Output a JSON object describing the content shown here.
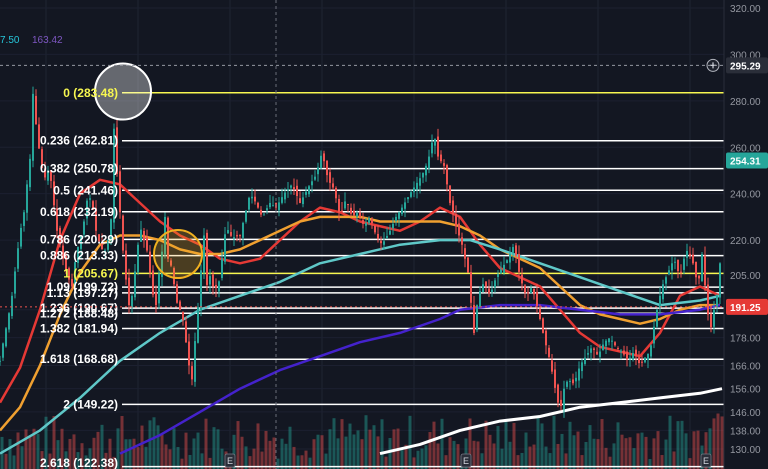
{
  "chart_data": {
    "type": "candlestick",
    "ylim": [
      128,
      324
    ],
    "x_count": 180,
    "yaxis_ticks": [
      "320.00",
      "300.00",
      "280.00",
      "260.00",
      "240.00",
      "220.00",
      "205.00",
      "190.00",
      "178.00",
      "166.00",
      "156.00",
      "146.00",
      "138.00",
      "130.00"
    ],
    "yaxis_tick_values": [
      320,
      300,
      280,
      260,
      240,
      220,
      205,
      190,
      178,
      166,
      156,
      146,
      138,
      130
    ],
    "price_badges": [
      {
        "label": "295.29",
        "value": 295.29,
        "color": "#2a2e39"
      },
      {
        "label": "254.31",
        "value": 254.31,
        "color": "#26a69a"
      },
      {
        "label": "191.25",
        "value": 191.25,
        "color": "#e53935"
      }
    ],
    "top_left_values": [
      {
        "text": "7.50",
        "color": "#26c6da"
      },
      {
        "text": "163.42",
        "color": "#7e57c2"
      }
    ],
    "fib_levels": [
      {
        "ratio": "0",
        "value": 283.48,
        "text": "0 (283.48)",
        "color": "#f7f750"
      },
      {
        "ratio": "0.236",
        "value": 262.81,
        "text": "0.236 (262.81)",
        "color": "#ffffff"
      },
      {
        "ratio": "0.382",
        "value": 250.78,
        "text": "0.382 (250.78)",
        "color": "#ffffff"
      },
      {
        "ratio": "0.5",
        "value": 241.46,
        "text": "0.5 (241.46)",
        "color": "#ffffff"
      },
      {
        "ratio": "0.618",
        "value": 232.19,
        "text": "0.618 (232.19)",
        "color": "#ffffff"
      },
      {
        "ratio": "0.786",
        "value": 220.29,
        "text": "0.786 (220.29)",
        "color": "#ffffff"
      },
      {
        "ratio": "0.886",
        "value": 213.33,
        "text": "0.886 (213.33)",
        "color": "#ffffff"
      },
      {
        "ratio": "1",
        "value": 205.67,
        "text": "1 (205.67)",
        "color": "#f7f750"
      },
      {
        "ratio": "1.09",
        "value": 199.72,
        "text": "1.09 (199.72)",
        "color": "#ffffff"
      },
      {
        "ratio": "1.13",
        "value": 197.27,
        "text": "1.13 (197.27)",
        "color": "#ffffff"
      },
      {
        "ratio": "1.236",
        "value": 190.67,
        "text": "1.236 (190.67)",
        "color": "#ffffff"
      },
      {
        "ratio": "1.272",
        "value": 188.48,
        "text": "1.272 (188.48)",
        "color": "#ffffff"
      },
      {
        "ratio": "1.382",
        "value": 181.94,
        "text": "1.382 (181.94)",
        "color": "#ffffff"
      },
      {
        "ratio": "1.618",
        "value": 168.68,
        "text": "1.618 (168.68)",
        "color": "#ffffff"
      },
      {
        "ratio": "2",
        "value": 149.22,
        "text": "2 (149.22)",
        "color": "#ffffff"
      },
      {
        "ratio": "2.618",
        "value": 122.38,
        "text": "2.618 (122.38)",
        "color": "#ffffff"
      }
    ],
    "close_path": [
      [
        0,
        168
      ],
      [
        4,
        178
      ],
      [
        8,
        186
      ],
      [
        12,
        196
      ],
      [
        16,
        210
      ],
      [
        20,
        223
      ],
      [
        24,
        232
      ],
      [
        28,
        248
      ],
      [
        32,
        262
      ],
      [
        33,
        283
      ],
      [
        36,
        270
      ],
      [
        40,
        256
      ],
      [
        44,
        246
      ],
      [
        48,
        250
      ],
      [
        52,
        244
      ],
      [
        56,
        226
      ],
      [
        60,
        218
      ],
      [
        64,
        210
      ],
      [
        68,
        204
      ],
      [
        72,
        200
      ],
      [
        76,
        214
      ],
      [
        80,
        220
      ],
      [
        84,
        228
      ],
      [
        88,
        240
      ],
      [
        92,
        236
      ],
      [
        96,
        224
      ],
      [
        100,
        218
      ],
      [
        104,
        214
      ],
      [
        108,
        220
      ],
      [
        112,
        232
      ],
      [
        114,
        268
      ],
      [
        116,
        254
      ],
      [
        120,
        232
      ],
      [
        124,
        210
      ],
      [
        128,
        196
      ],
      [
        130,
        188
      ],
      [
        132,
        196
      ],
      [
        136,
        210
      ],
      [
        140,
        226
      ],
      [
        144,
        220
      ],
      [
        148,
        214
      ],
      [
        152,
        198
      ],
      [
        156,
        192
      ],
      [
        160,
        210
      ],
      [
        164,
        220
      ],
      [
        166,
        240
      ],
      [
        168,
        212
      ],
      [
        172,
        208
      ],
      [
        176,
        194
      ],
      [
        180,
        190
      ],
      [
        184,
        184
      ],
      [
        188,
        168
      ],
      [
        192,
        160
      ],
      [
        196,
        182
      ],
      [
        200,
        200
      ],
      [
        202,
        214
      ],
      [
        204,
        222
      ],
      [
        206,
        198
      ],
      [
        209,
        206
      ],
      [
        213,
        200
      ],
      [
        218,
        199
      ],
      [
        222,
        212
      ],
      [
        226,
        226
      ],
      [
        232,
        221
      ],
      [
        240,
        222
      ],
      [
        250,
        240
      ],
      [
        256,
        236
      ],
      [
        262,
        230
      ],
      [
        270,
        236
      ],
      [
        276,
        234
      ],
      [
        284,
        240
      ],
      [
        292,
        244
      ],
      [
        300,
        236
      ],
      [
        310,
        244
      ],
      [
        316,
        248
      ],
      [
        322,
        258
      ],
      [
        328,
        246
      ],
      [
        334,
        242
      ],
      [
        340,
        230
      ],
      [
        346,
        238
      ],
      [
        352,
        230
      ],
      [
        358,
        232
      ],
      [
        364,
        226
      ],
      [
        370,
        230
      ],
      [
        376,
        222
      ],
      [
        382,
        218
      ],
      [
        390,
        224
      ],
      [
        396,
        230
      ],
      [
        402,
        234
      ],
      [
        410,
        240
      ],
      [
        416,
        244
      ],
      [
        422,
        248
      ],
      [
        428,
        254
      ],
      [
        434,
        266
      ],
      [
        438,
        256
      ],
      [
        444,
        252
      ],
      [
        450,
        236
      ],
      [
        456,
        226
      ],
      [
        462,
        218
      ],
      [
        468,
        206
      ],
      [
        474,
        180
      ],
      [
        478,
        196
      ],
      [
        484,
        202
      ],
      [
        490,
        196
      ],
      [
        496,
        204
      ],
      [
        502,
        208
      ],
      [
        508,
        212
      ],
      [
        514,
        218
      ],
      [
        520,
        204
      ],
      [
        526,
        196
      ],
      [
        532,
        200
      ],
      [
        538,
        190
      ],
      [
        544,
        178
      ],
      [
        550,
        168
      ],
      [
        556,
        154
      ],
      [
        560,
        146
      ],
      [
        564,
        156
      ],
      [
        568,
        160
      ],
      [
        574,
        158
      ],
      [
        580,
        166
      ],
      [
        586,
        170
      ],
      [
        592,
        174
      ],
      [
        598,
        170
      ],
      [
        604,
        176
      ],
      [
        610,
        178
      ],
      [
        616,
        174
      ],
      [
        622,
        172
      ],
      [
        628,
        168
      ],
      [
        634,
        172
      ],
      [
        640,
        166
      ],
      [
        646,
        170
      ],
      [
        650,
        172
      ],
      [
        656,
        188
      ],
      [
        662,
        200
      ],
      [
        668,
        206
      ],
      [
        674,
        212
      ],
      [
        680,
        204
      ],
      [
        686,
        216
      ],
      [
        692,
        212
      ],
      [
        698,
        200
      ],
      [
        702,
        214
      ],
      [
        706,
        196
      ],
      [
        710,
        180
      ],
      [
        714,
        190
      ],
      [
        718,
        198
      ],
      [
        720,
        210
      ],
      [
        722,
        254
      ]
    ],
    "moving_averages": [
      {
        "color": "#e53935",
        "width": 2.5,
        "points": [
          [
            0,
            150
          ],
          [
            20,
            165
          ],
          [
            40,
            190
          ],
          [
            60,
            220
          ],
          [
            80,
            240
          ],
          [
            100,
            246
          ],
          [
            120,
            244
          ],
          [
            140,
            236
          ],
          [
            160,
            228
          ],
          [
            180,
            222
          ],
          [
            200,
            218
          ],
          [
            220,
            212
          ],
          [
            240,
            210
          ],
          [
            260,
            212
          ],
          [
            280,
            220
          ],
          [
            300,
            228
          ],
          [
            320,
            234
          ],
          [
            340,
            232
          ],
          [
            360,
            228
          ],
          [
            380,
            226
          ],
          [
            400,
            224
          ],
          [
            420,
            228
          ],
          [
            440,
            234
          ],
          [
            460,
            230
          ],
          [
            480,
            218
          ],
          [
            500,
            208
          ],
          [
            520,
            204
          ],
          [
            540,
            200
          ],
          [
            560,
            190
          ],
          [
            580,
            180
          ],
          [
            600,
            174
          ],
          [
            620,
            172
          ],
          [
            640,
            170
          ],
          [
            660,
            180
          ],
          [
            680,
            196
          ],
          [
            700,
            200
          ],
          [
            720,
            196
          ]
        ]
      },
      {
        "color": "#f0a030",
        "width": 2.5,
        "points": [
          [
            0,
            138
          ],
          [
            20,
            148
          ],
          [
            40,
            166
          ],
          [
            60,
            188
          ],
          [
            80,
            206
          ],
          [
            100,
            218
          ],
          [
            120,
            222
          ],
          [
            140,
            222
          ],
          [
            160,
            220
          ],
          [
            180,
            216
          ],
          [
            200,
            214
          ],
          [
            220,
            214
          ],
          [
            240,
            216
          ],
          [
            260,
            220
          ],
          [
            280,
            224
          ],
          [
            300,
            228
          ],
          [
            320,
            230
          ],
          [
            340,
            230
          ],
          [
            360,
            230
          ],
          [
            380,
            228
          ],
          [
            400,
            228
          ],
          [
            420,
            228
          ],
          [
            440,
            228
          ],
          [
            460,
            226
          ],
          [
            480,
            222
          ],
          [
            500,
            216
          ],
          [
            520,
            212
          ],
          [
            540,
            208
          ],
          [
            560,
            200
          ],
          [
            580,
            192
          ],
          [
            600,
            188
          ],
          [
            620,
            186
          ],
          [
            640,
            184
          ],
          [
            660,
            186
          ],
          [
            680,
            190
          ],
          [
            700,
            192
          ],
          [
            720,
            192
          ]
        ]
      },
      {
        "color": "#5fc8c8",
        "width": 2.5,
        "points": [
          [
            0,
            128
          ],
          [
            40,
            138
          ],
          [
            80,
            152
          ],
          [
            120,
            168
          ],
          [
            160,
            180
          ],
          [
            200,
            190
          ],
          [
            240,
            196
          ],
          [
            280,
            202
          ],
          [
            320,
            210
          ],
          [
            360,
            214
          ],
          [
            400,
            218
          ],
          [
            440,
            220
          ],
          [
            470,
            220
          ],
          [
            500,
            216
          ],
          [
            540,
            210
          ],
          [
            580,
            204
          ],
          [
            620,
            198
          ],
          [
            660,
            192
          ],
          [
            700,
            194
          ],
          [
            720,
            196
          ]
        ]
      },
      {
        "color": "#4422cc",
        "width": 2.5,
        "points": [
          [
            120,
            128
          ],
          [
            160,
            136
          ],
          [
            200,
            146
          ],
          [
            240,
            156
          ],
          [
            280,
            164
          ],
          [
            320,
            170
          ],
          [
            360,
            176
          ],
          [
            400,
            180
          ],
          [
            440,
            186
          ],
          [
            460,
            190
          ],
          [
            500,
            192
          ],
          [
            540,
            192
          ],
          [
            580,
            190
          ],
          [
            620,
            188
          ],
          [
            660,
            188
          ],
          [
            700,
            190
          ],
          [
            720,
            192
          ]
        ]
      },
      {
        "color": "#ffffff",
        "width": 3,
        "points": [
          [
            380,
            128
          ],
          [
            420,
            132
          ],
          [
            460,
            138
          ],
          [
            500,
            142
          ],
          [
            540,
            144
          ],
          [
            580,
            148
          ],
          [
            620,
            150
          ],
          [
            660,
            152
          ],
          [
            700,
            154
          ],
          [
            722,
            156
          ]
        ]
      }
    ],
    "highlight_circles": [
      {
        "x": 100,
        "y": 284,
        "r_data_x": 28,
        "color": "#ffffff",
        "fill": "rgba(255,255,255,0.35)"
      },
      {
        "x": 155,
        "y": 214,
        "r_data_x": 24,
        "color": "#f0b020",
        "fill": "rgba(240,176,32,0.25)"
      }
    ]
  }
}
